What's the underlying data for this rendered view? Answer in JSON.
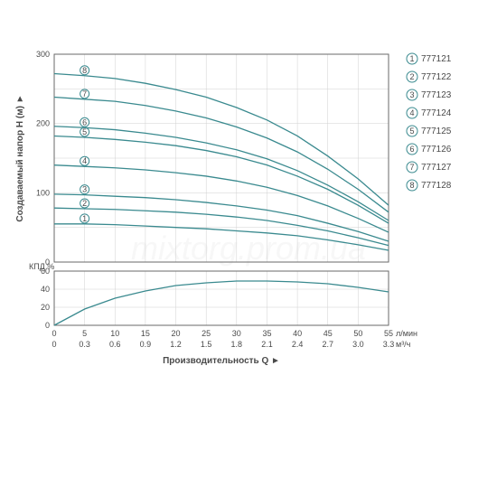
{
  "watermark": "mixtorg.prom.ua",
  "y_axis_label": "Создаваемый напор H (м)",
  "x_axis_label": "Производительность Q",
  "kpd_label": "КПД %",
  "x_unit_top": "л/мин",
  "x_unit_bottom": "м³/ч",
  "colors": {
    "curve": "#3a8a8f",
    "grid": "#d0d0d0",
    "axis": "#6a6a6a",
    "text": "#4a4a4a",
    "circle_stroke": "#3a8a8f",
    "arrow": "#4a4a4a"
  },
  "main_chart": {
    "ylim": [
      0,
      300
    ],
    "ytick_step": 100,
    "x_lmin": [
      0,
      5,
      10,
      15,
      20,
      25,
      30,
      35,
      40,
      45,
      50,
      55
    ],
    "x_m3h": [
      "0",
      "0.3",
      "0.6",
      "0.9",
      "1.2",
      "1.5",
      "1.8",
      "2.1",
      "2.4",
      "2.7",
      "3.0",
      "3.3"
    ]
  },
  "kpd_chart": {
    "yticks": [
      0,
      20,
      40,
      60
    ],
    "values": [
      0,
      18,
      30,
      38,
      44,
      47,
      49,
      49,
      48,
      46,
      42,
      37
    ]
  },
  "curves": [
    {
      "num": "1",
      "label": "777121",
      "y_at_x": [
        55,
        55,
        54,
        52,
        50,
        48,
        45,
        42,
        38,
        32,
        25,
        17
      ]
    },
    {
      "num": "2",
      "label": "777122",
      "y_at_x": [
        78,
        77,
        76,
        74,
        72,
        69,
        65,
        60,
        53,
        45,
        35,
        24
      ]
    },
    {
      "num": "3",
      "label": "777123",
      "y_at_x": [
        98,
        97,
        95,
        93,
        90,
        86,
        81,
        75,
        67,
        56,
        44,
        30
      ]
    },
    {
      "num": "4",
      "label": "777124",
      "y_at_x": [
        140,
        138,
        136,
        133,
        129,
        124,
        117,
        108,
        96,
        81,
        63,
        43
      ]
    },
    {
      "num": "5",
      "label": "777125",
      "y_at_x": [
        182,
        180,
        177,
        173,
        168,
        161,
        152,
        140,
        124,
        105,
        82,
        56
      ]
    },
    {
      "num": "6",
      "label": "777126",
      "y_at_x": [
        196,
        194,
        191,
        186,
        180,
        172,
        162,
        149,
        132,
        111,
        87,
        60
      ]
    },
    {
      "num": "7",
      "label": "777127",
      "y_at_x": [
        238,
        235,
        232,
        226,
        218,
        208,
        195,
        179,
        159,
        134,
        105,
        72
      ]
    },
    {
      "num": "8",
      "label": "777128",
      "y_at_x": [
        272,
        269,
        265,
        258,
        249,
        238,
        223,
        205,
        182,
        153,
        120,
        82
      ]
    }
  ],
  "curve_label_x_idx": 1
}
